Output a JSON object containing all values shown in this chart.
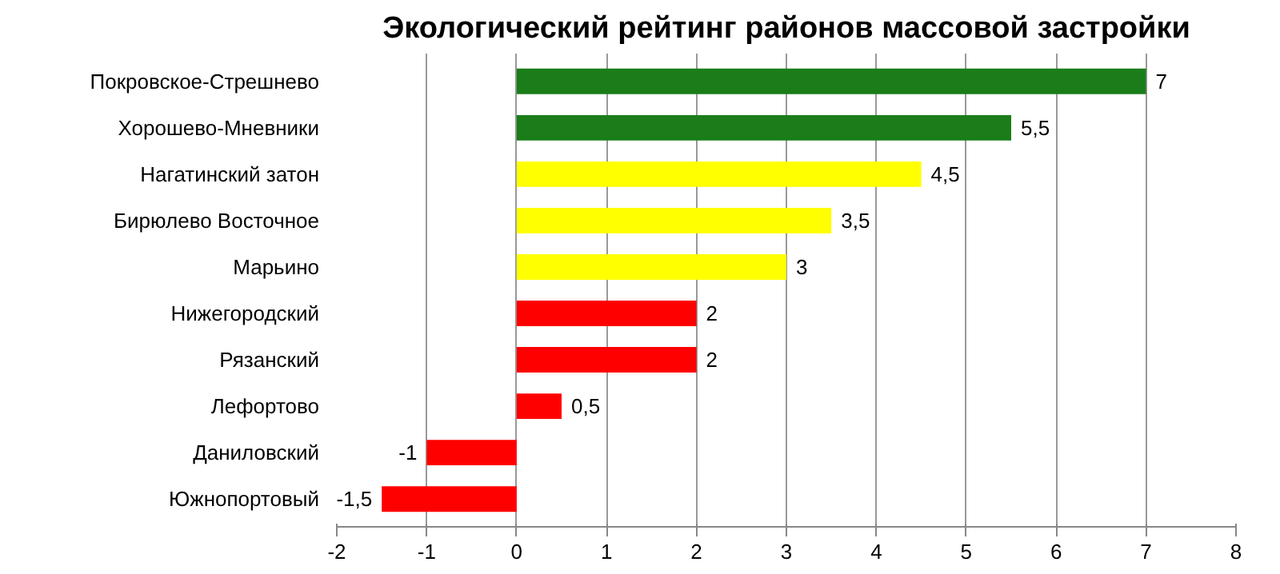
{
  "chart_data": {
    "type": "bar",
    "orientation": "horizontal",
    "title": "Экологический рейтинг районов массовой застройки",
    "categories": [
      "Покровское-Стрешнево",
      "Хорошево-Мневники",
      "Нагатинский затон",
      "Бирюлево Восточное",
      "Марьино",
      "Нижегородский",
      "Рязанский",
      "Лефортово",
      "Даниловский",
      "Южнопортовый"
    ],
    "values": [
      7,
      5.5,
      4.5,
      3.5,
      3,
      2,
      2,
      0.5,
      -1,
      -1.5
    ],
    "colors": [
      "#1a7d1a",
      "#1a7d1a",
      "#ffff00",
      "#ffff00",
      "#ffff00",
      "#ff0000",
      "#ff0000",
      "#ff0000",
      "#ff0000",
      "#ff0000"
    ],
    "value_labels": [
      "7",
      "5,5",
      "4,5",
      "3,5",
      "3",
      "2",
      "2",
      "0,5",
      "-1",
      "-1,5"
    ],
    "xlim": [
      -2,
      8
    ],
    "xticks": [
      -2,
      -1,
      0,
      1,
      2,
      3,
      4,
      5,
      6,
      7,
      8
    ],
    "grid": "x"
  }
}
